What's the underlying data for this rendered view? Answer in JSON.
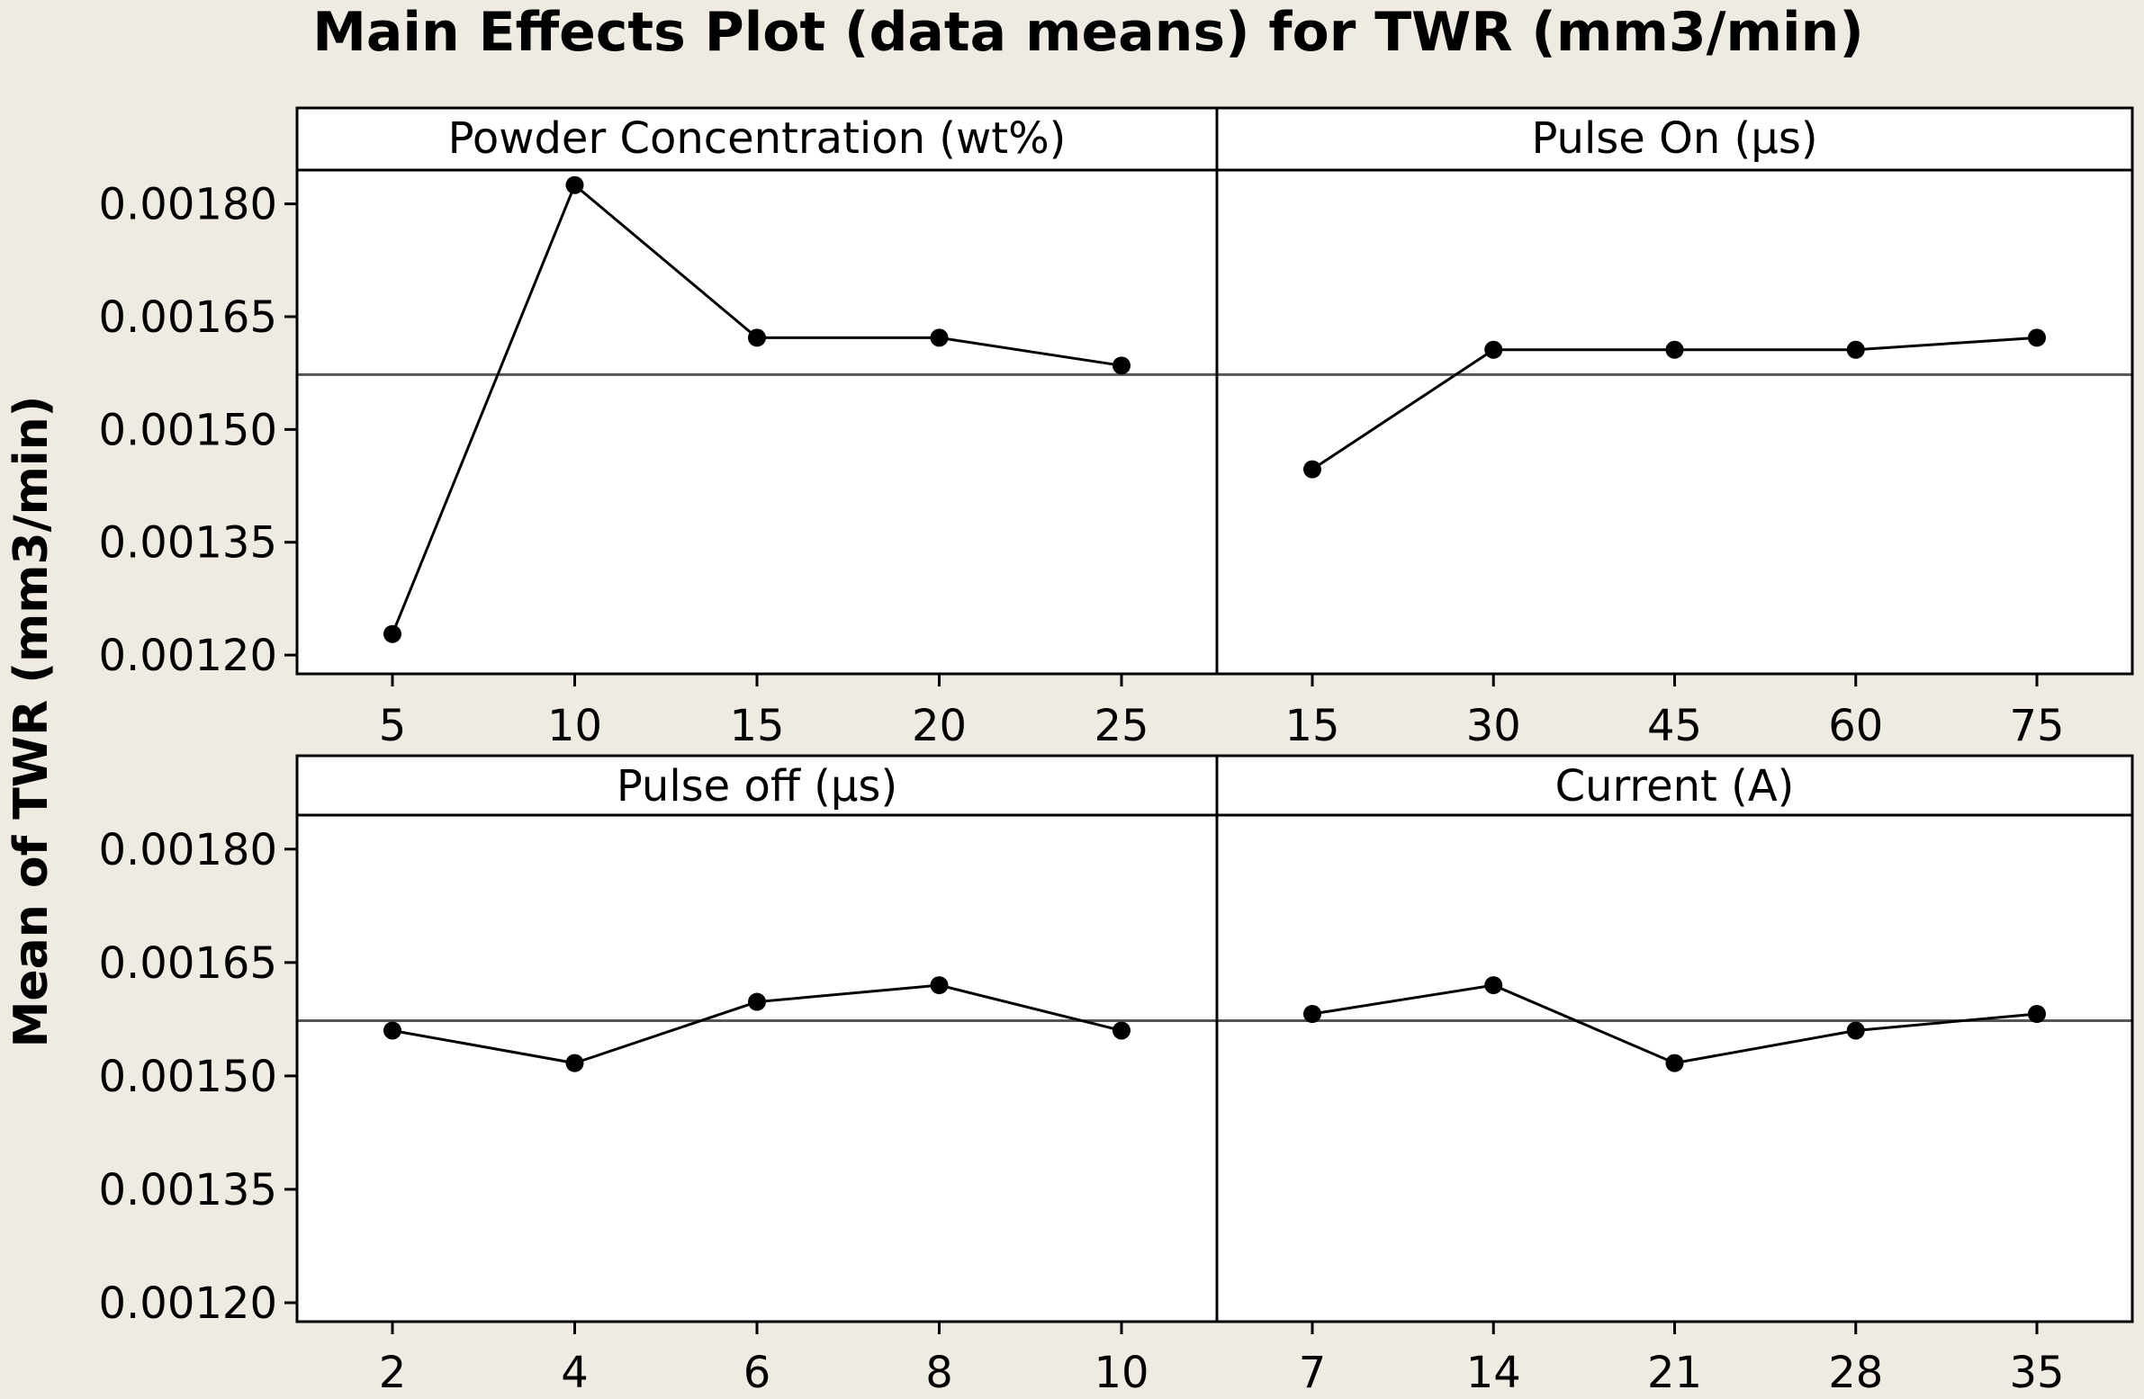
{
  "chart_data": {
    "type": "line",
    "title": "Main Effects Plot (data means) for TWR (mm3/min)",
    "ylabel": "Mean of TWR (mm3/min)",
    "y_ticks": [
      "0.00120",
      "0.00135",
      "0.00150",
      "0.00165",
      "0.00180"
    ],
    "ylim": [
      0.001175,
      0.001845
    ],
    "overall_mean": 0.001573,
    "grid": false,
    "colors": {
      "background": "#efebe2",
      "panel": "#ffffff",
      "series": "#000000",
      "mean_line": "#555555"
    },
    "panels": [
      {
        "name": "Powder Concentration (wt%)",
        "x": [
          "5",
          "10",
          "15",
          "20",
          "25"
        ],
        "values": [
          0.001228,
          0.001825,
          0.001622,
          0.001622,
          0.001585
        ]
      },
      {
        "name": "Pulse On (µs)",
        "x": [
          "15",
          "30",
          "45",
          "60",
          "75"
        ],
        "values": [
          0.001447,
          0.001606,
          0.001606,
          0.001606,
          0.001622
        ]
      },
      {
        "name": "Pulse off (µs)",
        "x": [
          "2",
          "4",
          "6",
          "8",
          "10"
        ],
        "values": [
          0.00156,
          0.001517,
          0.001598,
          0.00162,
          0.00156
        ]
      },
      {
        "name": "Current (A)",
        "x": [
          "7",
          "14",
          "21",
          "28",
          "35"
        ],
        "values": [
          0.001582,
          0.00162,
          0.001517,
          0.00156,
          0.001582
        ]
      }
    ]
  }
}
